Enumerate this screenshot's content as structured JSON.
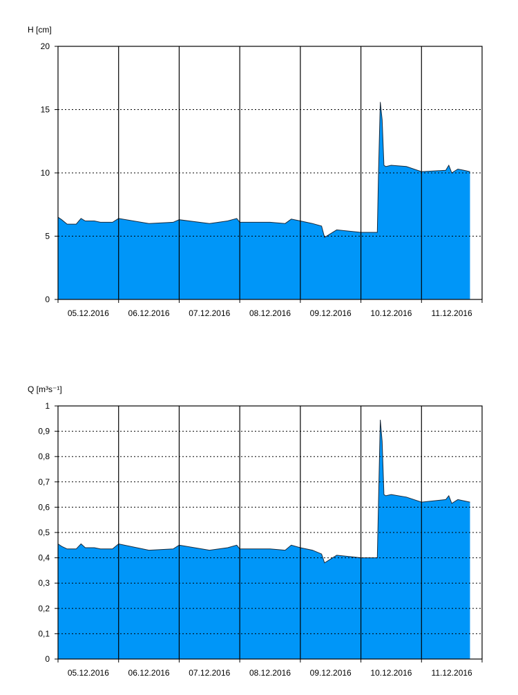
{
  "chart_data": [
    {
      "type": "area",
      "ylabel": "H [cm]",
      "ylim": [
        0,
        20
      ],
      "yticks": [
        0,
        5,
        10,
        15,
        20
      ],
      "ytick_labels": [
        "0",
        "5",
        "10",
        "15",
        "20"
      ],
      "xlim": [
        0,
        7
      ],
      "date_ticks": [
        "05.12.2016",
        "06.12.2016",
        "07.12.2016",
        "08.12.2016",
        "09.12.2016",
        "10.12.2016",
        "11.12.2016"
      ],
      "grid": "dotted horizontal at major ticks, solid vertical at day boundaries",
      "fill_color": "#0096f8",
      "series": [
        {
          "x": [
            0,
            0.06,
            0.15,
            0.3,
            0.38,
            0.45,
            0.6,
            0.7,
            0.9,
            1.0,
            1.5,
            1.9,
            2.0,
            2.5,
            2.8,
            2.95,
            3.0,
            3.5,
            3.75,
            3.85,
            4.0,
            4.2,
            4.35,
            4.4,
            4.5,
            4.6,
            5.0,
            5.27,
            5.29,
            5.32,
            5.35,
            5.38,
            5.41,
            5.5,
            5.75,
            6.0,
            6.4,
            6.45,
            6.5,
            6.6,
            6.7,
            6.8
          ],
          "y": [
            6.5,
            6.3,
            5.95,
            5.95,
            6.4,
            6.2,
            6.2,
            6.1,
            6.1,
            6.4,
            6.0,
            6.1,
            6.3,
            6.0,
            6.2,
            6.4,
            6.1,
            6.1,
            6.0,
            6.35,
            6.2,
            6.0,
            5.8,
            4.9,
            5.2,
            5.5,
            5.3,
            5.3,
            10.0,
            15.6,
            14.2,
            10.6,
            10.5,
            10.6,
            10.5,
            10.1,
            10.2,
            10.6,
            10.0,
            10.3,
            10.2,
            10.1
          ]
        }
      ]
    },
    {
      "type": "area",
      "ylabel": "Q [m³s⁻¹]",
      "ylim": [
        0,
        1
      ],
      "yticks": [
        0,
        0.1,
        0.2,
        0.3,
        0.4,
        0.5,
        0.6,
        0.7,
        0.8,
        0.9,
        1
      ],
      "ytick_labels": [
        "0",
        "0,1",
        "0,2",
        "0,3",
        "0,4",
        "0,5",
        "0,6",
        "0,7",
        "0,8",
        "0,9",
        "1"
      ],
      "xlim": [
        0,
        7
      ],
      "date_ticks": [
        "05.12.2016",
        "06.12.2016",
        "07.12.2016",
        "08.12.2016",
        "09.12.2016",
        "10.12.2016",
        "11.12.2016"
      ],
      "grid": "dotted horizontal at major ticks, solid vertical at day boundaries",
      "fill_color": "#0096f8",
      "series": [
        {
          "x": [
            0,
            0.06,
            0.15,
            0.3,
            0.38,
            0.45,
            0.6,
            0.7,
            0.9,
            1.0,
            1.5,
            1.9,
            2.0,
            2.5,
            2.8,
            2.95,
            3.0,
            3.5,
            3.75,
            3.85,
            4.0,
            4.2,
            4.35,
            4.4,
            4.5,
            4.6,
            5.0,
            5.27,
            5.29,
            5.32,
            5.35,
            5.38,
            5.41,
            5.5,
            5.75,
            6.0,
            6.4,
            6.45,
            6.5,
            6.6,
            6.7,
            6.8
          ],
          "y": [
            0.455,
            0.445,
            0.435,
            0.435,
            0.455,
            0.44,
            0.44,
            0.435,
            0.435,
            0.455,
            0.43,
            0.435,
            0.45,
            0.43,
            0.44,
            0.45,
            0.435,
            0.435,
            0.43,
            0.45,
            0.44,
            0.43,
            0.415,
            0.38,
            0.395,
            0.41,
            0.4,
            0.4,
            0.62,
            0.945,
            0.86,
            0.65,
            0.645,
            0.65,
            0.64,
            0.62,
            0.63,
            0.645,
            0.615,
            0.63,
            0.625,
            0.62
          ]
        }
      ]
    }
  ]
}
